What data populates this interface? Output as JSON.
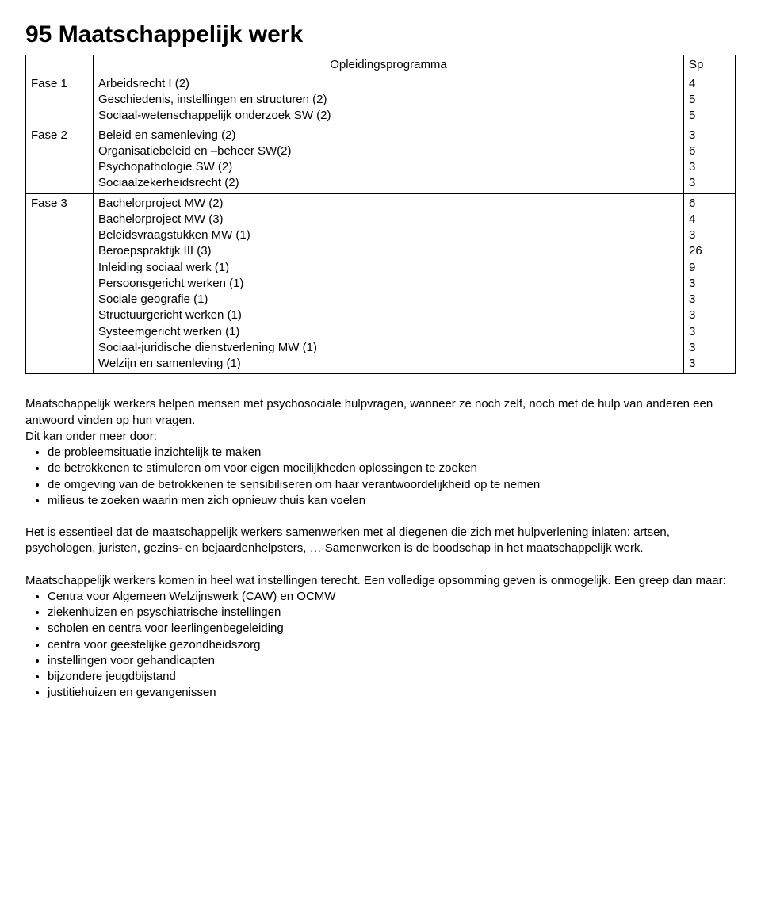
{
  "title": "95 Maatschappelijk werk",
  "table": {
    "header_label": "Opleidingsprogramma",
    "header_sp": "Sp",
    "phases": [
      {
        "phase": "Fase 1",
        "rows": [
          {
            "course": "Arbeidsrecht I (2)",
            "sp": "4"
          },
          {
            "course": "Geschiedenis, instellingen en structuren (2)",
            "sp": "5"
          },
          {
            "course": "Sociaal-wetenschappelijk onderzoek SW (2)",
            "sp": "5"
          }
        ]
      },
      {
        "phase": "Fase 2",
        "rows": [
          {
            "course": "Beleid en samenleving (2)",
            "sp": "3"
          },
          {
            "course": "Organisatiebeleid en –beheer SW(2)",
            "sp": "6"
          },
          {
            "course": "Psychopathologie SW (2)",
            "sp": "3"
          },
          {
            "course": "Sociaalzekerheidsrecht (2)",
            "sp": "3"
          }
        ]
      },
      {
        "phase": "Fase 3",
        "rows": [
          {
            "course": "Bachelorproject MW (2)",
            "sp": "6"
          },
          {
            "course": "Bachelorproject MW (3)",
            "sp": "4"
          },
          {
            "course": "Beleidsvraagstukken MW (1)",
            "sp": "3"
          },
          {
            "course": "Beroepspraktijk III (3)",
            "sp": "26"
          },
          {
            "course": "Inleiding sociaal werk (1)",
            "sp": "9"
          },
          {
            "course": "Persoonsgericht werken (1)",
            "sp": "3"
          },
          {
            "course": "Sociale geografie (1)",
            "sp": "3"
          },
          {
            "course": "Structuurgericht werken (1)",
            "sp": "3"
          },
          {
            "course": "Systeemgericht werken (1)",
            "sp": "3"
          },
          {
            "course": "Sociaal-juridische dienstverlening MW (1)",
            "sp": "3"
          },
          {
            "course": "Welzijn en samenleving (1)",
            "sp": "3"
          }
        ]
      }
    ]
  },
  "intro_p1": "Maatschappelijk werkers helpen mensen met psychosociale hulpvragen, wanneer ze noch zelf, noch met de hulp van anderen een antwoord vinden op hun vragen.",
  "intro_p2": "Dit kan onder meer door:",
  "intro_bullets": [
    "de probleemsituatie inzichtelijk te maken",
    "de betrokkenen te stimuleren om voor eigen moeilijkheden oplossingen te zoeken",
    "de omgeving van de betrokkenen te sensibiliseren om haar verantwoordelijkheid op te nemen",
    "milieus te zoeken waarin men zich opnieuw thuis kan voelen"
  ],
  "essential_p": "Het is essentieel dat de maatschappelijk werkers samenwerken met al diegenen die zich met hulpverlening inlaten: artsen, psychologen, juristen, gezins- en bejaardenhelpsters, … Samenwerken is de boodschap in het maatschappelijk werk.",
  "inst_p1": "Maatschappelijk werkers komen in heel wat instellingen terecht. Een volledige opsomming geven is onmogelijk. Een greep dan maar:",
  "inst_bullets": [
    "Centra voor Algemeen Welzijnswerk (CAW) en OCMW",
    "ziekenhuizen en psyschiatrische instellingen",
    "scholen en centra voor leerlingenbegeleiding",
    "centra voor geestelijke gezondheidszorg",
    "instellingen voor gehandicapten",
    "bijzondere jeugdbijstand",
    "justitiehuizen en gevangenissen"
  ]
}
